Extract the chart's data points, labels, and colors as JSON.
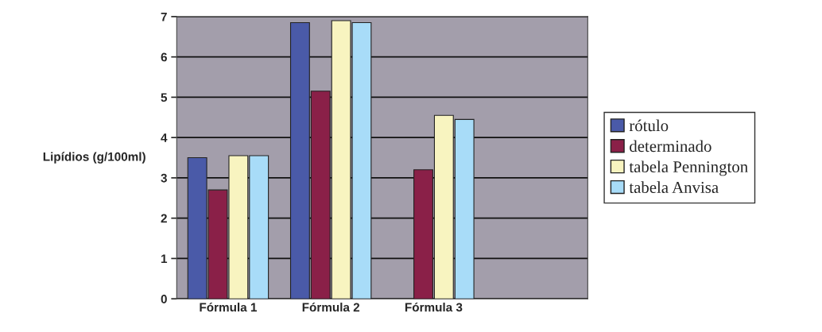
{
  "chart_data": {
    "type": "bar",
    "ylabel": "Lipídios (g/100ml)",
    "categories": [
      "Fórmula 1",
      "Fórmula 2",
      "Fórmula 3",
      null
    ],
    "series": [
      {
        "name": "rótulo",
        "color": "#4a5aa8",
        "values": [
          3.5,
          6.85,
          null,
          null
        ]
      },
      {
        "name": "determinado",
        "color": "#8a2048",
        "values": [
          2.7,
          5.15,
          3.2,
          null
        ]
      },
      {
        "name": "tabela Pennington",
        "color": "#f8f4c0",
        "values": [
          3.55,
          6.9,
          4.55,
          null
        ]
      },
      {
        "name": "tabela Anvisa",
        "color": "#a8dcf8",
        "values": [
          3.55,
          6.85,
          4.45,
          null
        ]
      }
    ],
    "ylim": [
      0,
      7
    ],
    "yticks": [
      0,
      1,
      2,
      3,
      4,
      5,
      6,
      7
    ],
    "grid": "y",
    "legend": "right"
  }
}
